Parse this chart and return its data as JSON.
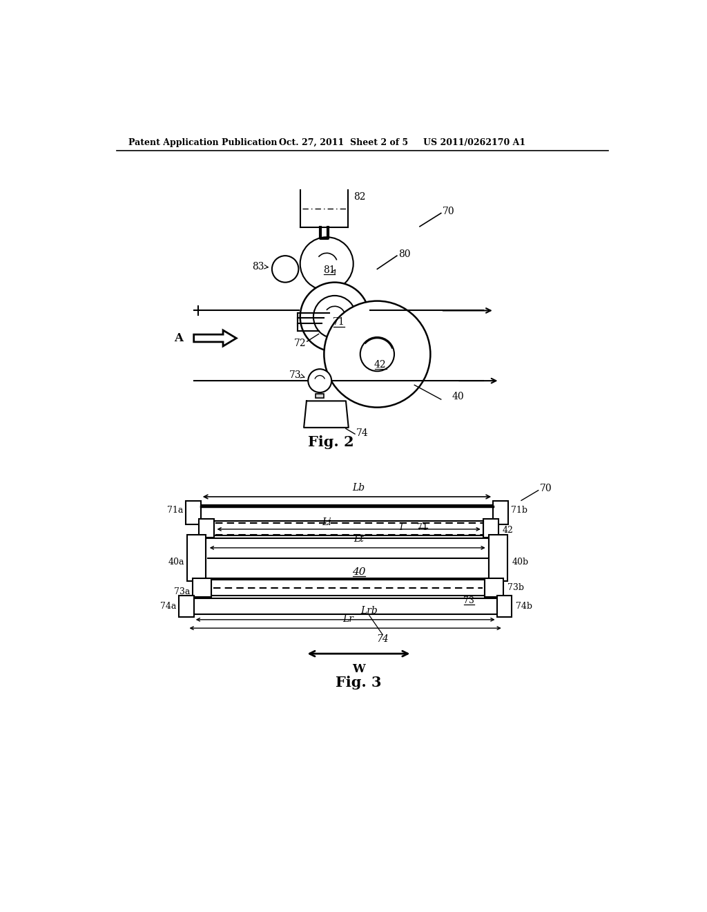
{
  "bg_color": "#ffffff",
  "header_left": "Patent Application Publication",
  "header_mid": "Oct. 27, 2011  Sheet 2 of 5",
  "header_right": "US 2011/0262170 A1",
  "fig2_caption": "Fig. 2",
  "fig3_caption": "Fig. 3"
}
